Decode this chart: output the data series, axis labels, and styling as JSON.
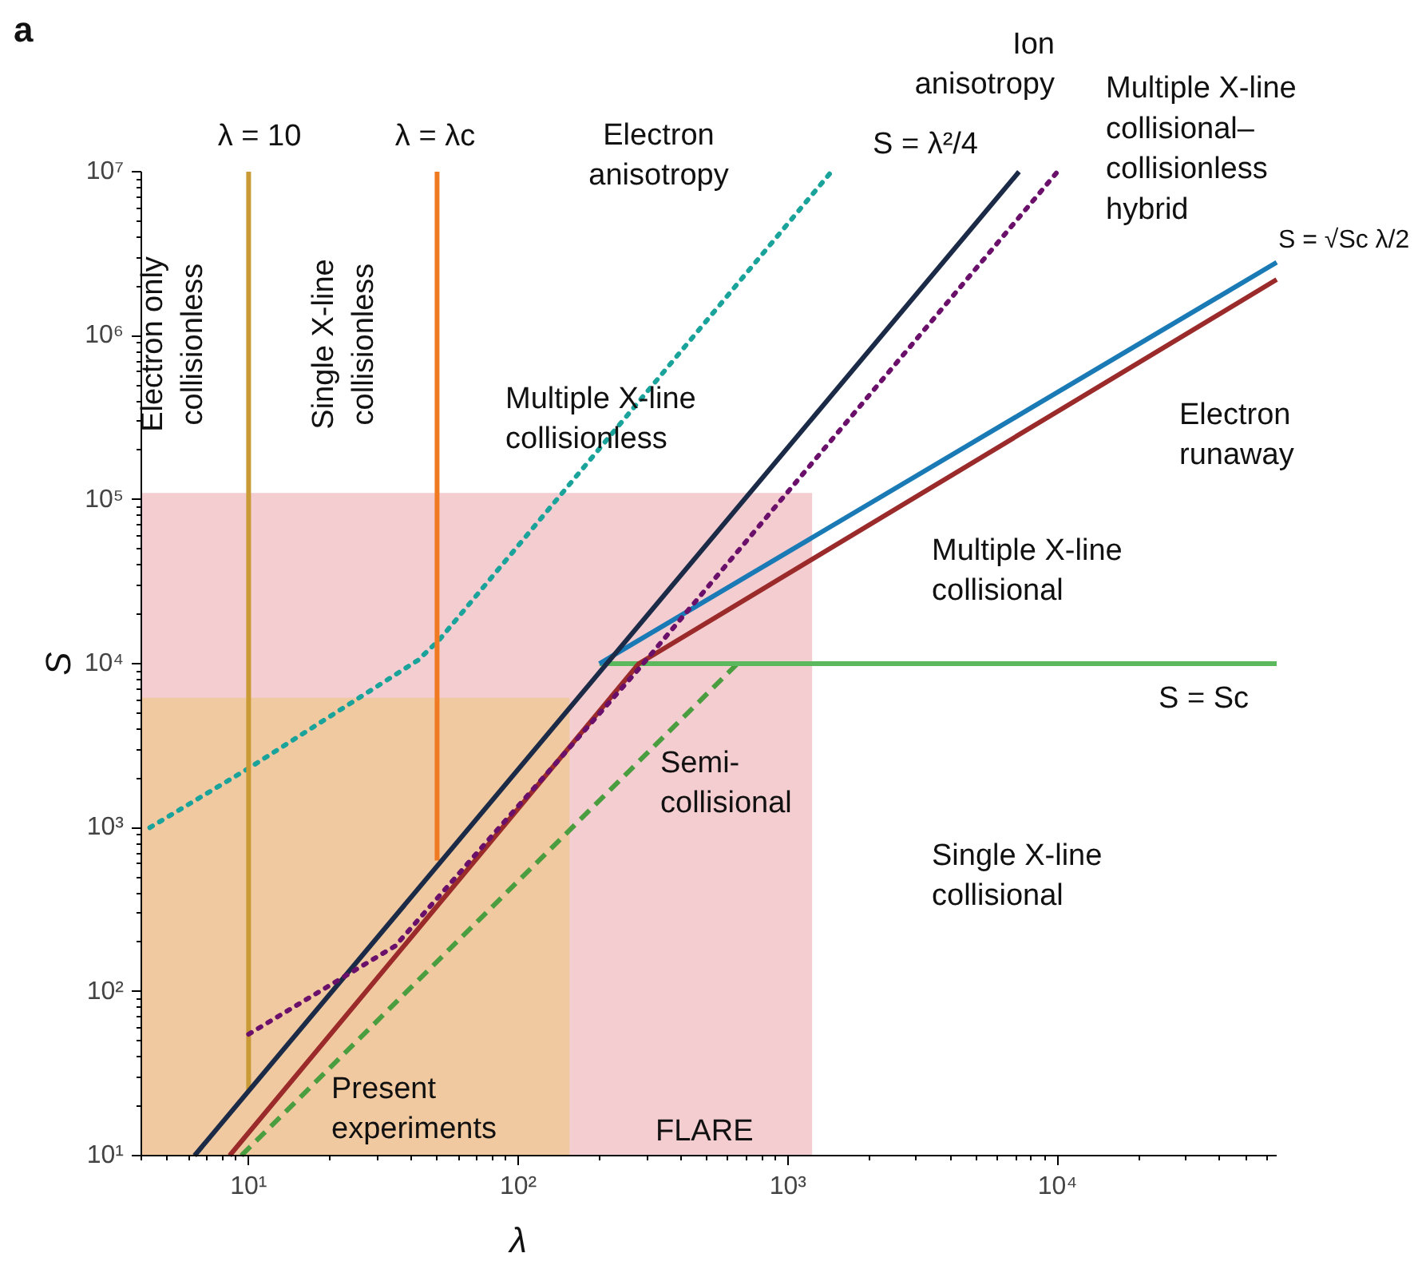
{
  "chart_data": {
    "type": "line",
    "title": "a",
    "xlabel": "λ",
    "ylabel": "S",
    "log": "xy",
    "grid": false,
    "xlim": [
      4,
      65000
    ],
    "ylim": [
      10,
      10000000
    ],
    "xticks": [
      {
        "value": 10,
        "label": "10¹"
      },
      {
        "value": 100,
        "label": "10²"
      },
      {
        "value": 1000,
        "label": "10³"
      },
      {
        "value": 10000,
        "label": "10⁴"
      }
    ],
    "yticks": [
      {
        "value": 10,
        "label": "10¹"
      },
      {
        "value": 100,
        "label": "10²"
      },
      {
        "value": 1000,
        "label": "10³"
      },
      {
        "value": 10000,
        "label": "10⁴"
      },
      {
        "value": 100000,
        "label": "10⁵"
      },
      {
        "value": 1000000,
        "label": "10⁶"
      },
      {
        "value": 10000000,
        "label": "10⁷"
      }
    ],
    "series": [
      {
        "type": "area",
        "color": "#f3cdd0",
        "x": [
          4,
          1230
        ],
        "values": [
          110000,
          110000
        ]
      },
      {
        "type": "area",
        "color": "#f0c9a0",
        "x": [
          4,
          155
        ],
        "values": [
          6200,
          6200
        ]
      },
      {
        "color": "#1aa39a",
        "line_style": "dotted",
        "x": [
          4.3,
          10,
          42.5,
          51,
          1450
        ],
        "values": [
          1000,
          2300,
          10500,
          14000,
          10000000
        ]
      },
      {
        "color": "#c99a35",
        "line_style": "solid",
        "x": [
          10,
          10
        ],
        "values": [
          25,
          10000000
        ]
      },
      {
        "color": "#f07a22",
        "line_style": "solid",
        "x": [
          50,
          50
        ],
        "values": [
          630,
          10000000
        ]
      },
      {
        "color": "#4a9e3f",
        "line_style": "dashed",
        "x": [
          9.4,
          650
        ],
        "values": [
          10,
          10000
        ]
      },
      {
        "color": "#5cb85c",
        "line_style": "solid",
        "x": [
          200,
          65000
        ],
        "values": [
          10000,
          10000
        ]
      },
      {
        "color": "#1a7ab5",
        "line_style": "solid",
        "x": [
          200,
          65000
        ],
        "values": [
          10000,
          2800000
        ]
      },
      {
        "color": "#9b2a2a",
        "line_style": "solid",
        "x": [
          8.5,
          280,
          65000
        ],
        "values": [
          10,
          10000,
          2200000
        ]
      },
      {
        "color": "#1b2a47",
        "line_style": "solid",
        "x": [
          6.3,
          7200
        ],
        "values": [
          10,
          10000000
        ]
      },
      {
        "color": "#6a0f6a",
        "line_style": "dotted",
        "x": [
          10,
          35,
          280,
          10000
        ],
        "values": [
          55,
          190,
          9300,
          10000000
        ]
      }
    ],
    "annotations": [
      "λ = 10",
      "λ = λc",
      "Electron\nanisotropy",
      "Ion\nanisotropy",
      "S = λ²/4",
      "Multiple X-line\ncollisional–\ncollisionless\nhybrid",
      "S = √Sc λ/2",
      "Electron\nrunaway",
      "Multiple X-line\ncollisionless",
      "Multiple X-line\ncollisional",
      "S = Sc",
      "Semi-\ncollisional",
      "Single X-line\ncollisional",
      "Present\nexperiments",
      "FLARE",
      "Electron only\ncollisionless",
      "Single X-line\ncollisionless"
    ]
  }
}
